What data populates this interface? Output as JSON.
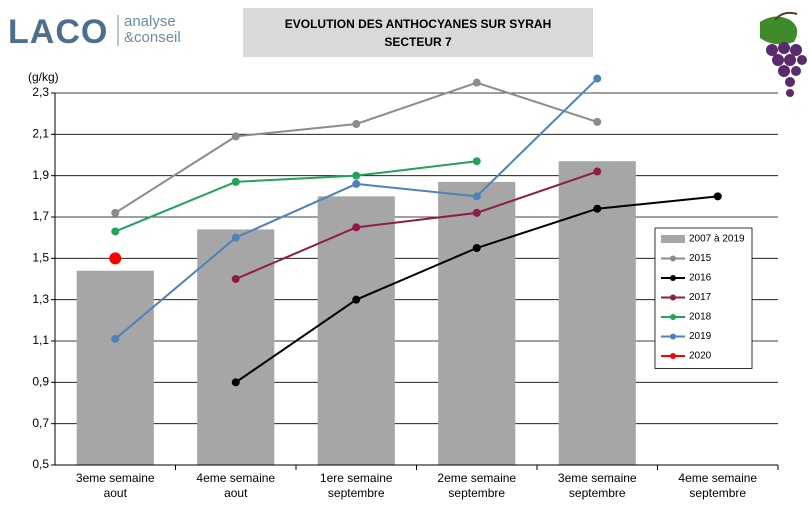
{
  "logo": {
    "name": "LACO",
    "tagline": [
      "analyse",
      "&conseil"
    ]
  },
  "chart_data": {
    "type": "bar",
    "title": [
      "EVOLUTION DES ANTHOCYANES SUR SYRAH",
      "SECTEUR 7"
    ],
    "y_label": "(g/kg)",
    "categories": [
      [
        "3eme semaine",
        "aout"
      ],
      [
        "4eme semaine",
        "aout"
      ],
      [
        "1ere semaine",
        "septembre"
      ],
      [
        "2eme semaine",
        "septembre"
      ],
      [
        "3eme semaine",
        "septembre"
      ],
      [
        "4eme semaine",
        "septembre"
      ]
    ],
    "ylim": [
      0.5,
      2.3
    ],
    "yticks": [
      {
        "value": 0.5,
        "label": "0,5"
      },
      {
        "value": 0.7,
        "label": "0,7"
      },
      {
        "value": 0.9,
        "label": "0,9"
      },
      {
        "value": 1.1,
        "label": "1,1"
      },
      {
        "value": 1.3,
        "label": "1,3"
      },
      {
        "value": 1.5,
        "label": "1,5"
      },
      {
        "value": 1.7,
        "label": "1,7"
      },
      {
        "value": 1.9,
        "label": "1,9"
      },
      {
        "value": 2.1,
        "label": "2,1"
      },
      {
        "value": 2.3,
        "label": "2,3"
      }
    ],
    "grid": true,
    "series": [
      {
        "name": "2007 à 2019",
        "type": "bar",
        "color": "#a6a6a6",
        "values": [
          1.44,
          1.64,
          1.8,
          1.87,
          1.97,
          null
        ]
      },
      {
        "name": "2015",
        "type": "line",
        "color": "#8c8c8c",
        "values": [
          1.72,
          2.09,
          2.15,
          2.35,
          2.16,
          null
        ]
      },
      {
        "name": "2016",
        "type": "line",
        "color": "#000000",
        "values": [
          null,
          0.9,
          1.3,
          1.55,
          1.74,
          1.8
        ]
      },
      {
        "name": "2017",
        "type": "line",
        "color": "#8e1c4b",
        "values": [
          null,
          1.4,
          1.65,
          1.72,
          1.92,
          null
        ]
      },
      {
        "name": "2018",
        "type": "line",
        "color": "#20a35a",
        "values": [
          1.63,
          1.87,
          1.9,
          1.97,
          null,
          null
        ]
      },
      {
        "name": "2019",
        "type": "line",
        "color": "#4f81bd",
        "values": [
          1.11,
          1.6,
          1.86,
          1.8,
          2.37,
          null
        ]
      },
      {
        "name": "2020",
        "type": "line",
        "color": "#ff0000",
        "values": [
          1.5,
          null,
          null,
          null,
          null,
          null
        ]
      }
    ]
  }
}
